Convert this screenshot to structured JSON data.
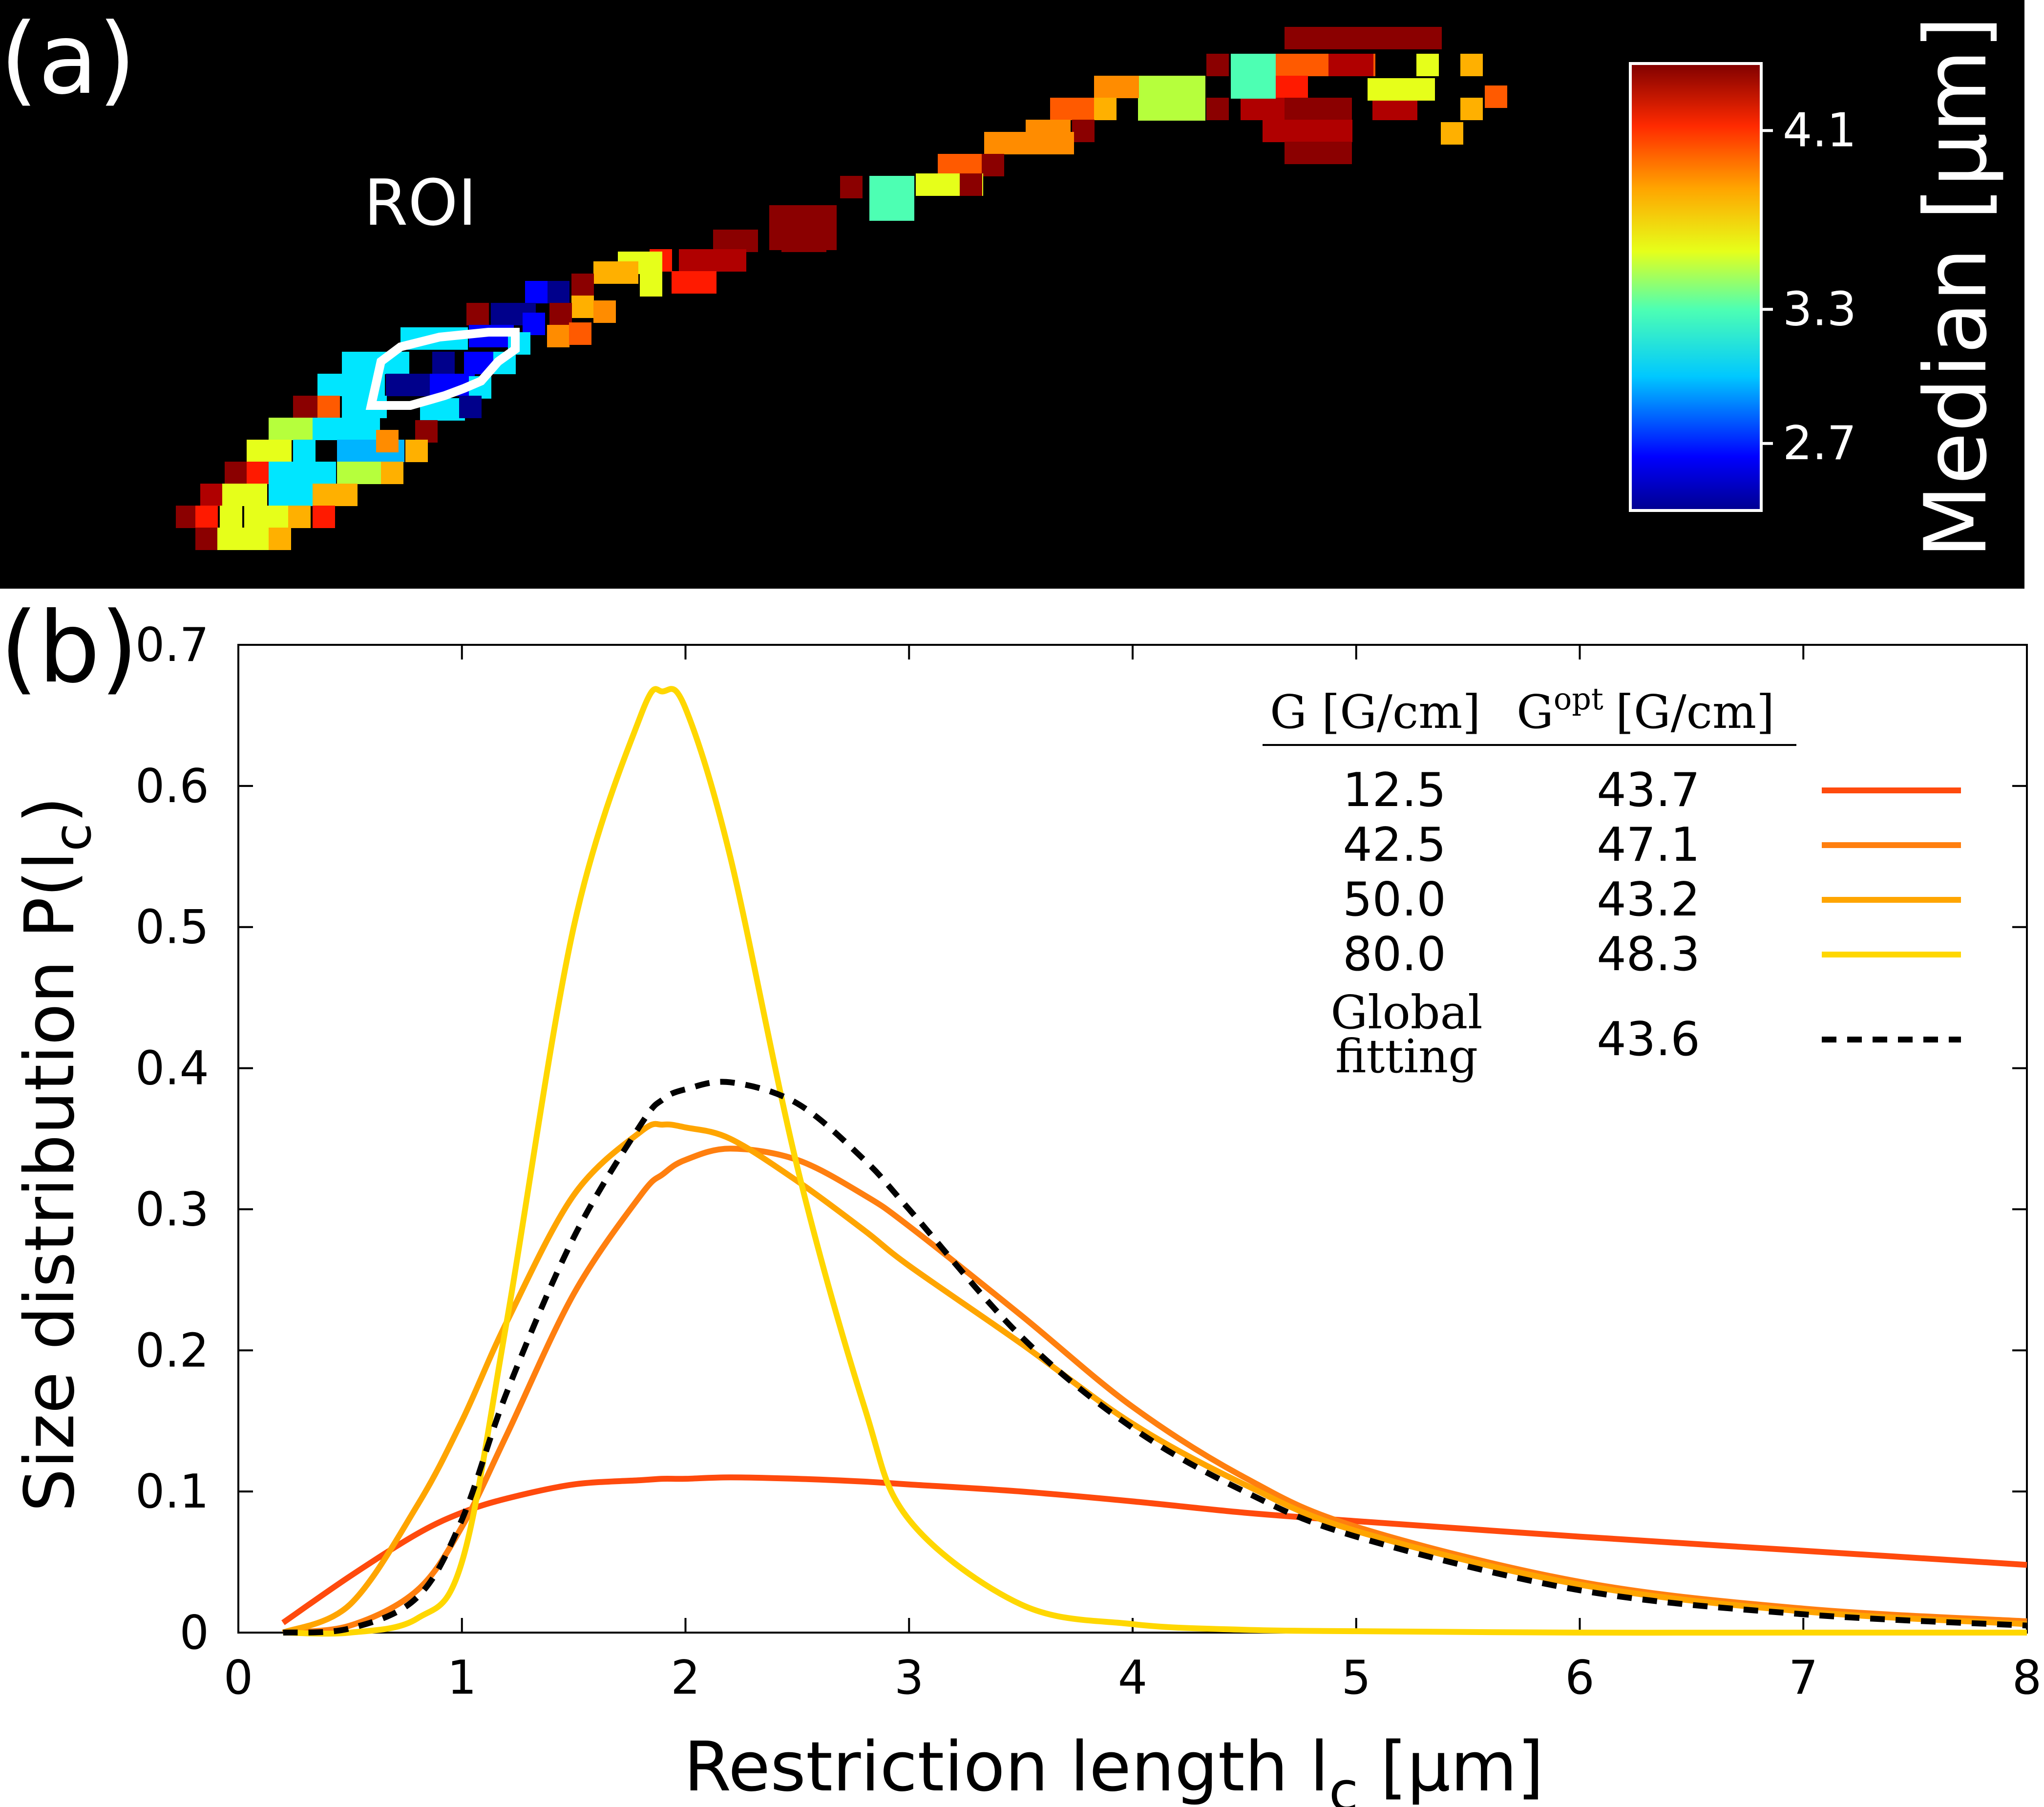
{
  "panel_a": {
    "label": "(a)",
    "roi_label": "ROI",
    "colorbar": {
      "title": "Median [µm]",
      "ticks": [
        "4.1",
        "3.3",
        "2.7"
      ],
      "tick_values": [
        4.1,
        3.3,
        2.7
      ],
      "range": [
        2.4,
        4.4
      ]
    }
  },
  "panel_b": {
    "label": "(b)",
    "legend": {
      "header_g": "G [G/cm]",
      "header_gopt_base": "G",
      "header_gopt_sup": "opt",
      "header_gopt_unit": "[G/cm]",
      "global_label_line1": "Global",
      "global_label_line2": "fitting"
    }
  },
  "chart_data": {
    "type": "line",
    "xlabel": "Restriction length l_c [µm]",
    "ylabel": "Size distribution P(l_c)",
    "xlabel_parts": {
      "main": "Restriction length l",
      "sub": "c",
      "unit": "[µm]"
    },
    "ylabel_parts": {
      "main": "Size distribution P(l",
      "sub": "c",
      "end": ")"
    },
    "xlim": [
      0,
      8
    ],
    "ylim": [
      0,
      0.7
    ],
    "xticks": [
      "0",
      "1",
      "2",
      "3",
      "4",
      "5",
      "6",
      "7",
      "8"
    ],
    "yticks": [
      "0",
      "0.1",
      "0.2",
      "0.3",
      "0.4",
      "0.5",
      "0.6",
      "0.7"
    ],
    "x": [
      0.2,
      0.5,
      0.8,
      1.0,
      1.2,
      1.5,
      1.8,
      1.9,
      2.0,
      2.2,
      2.5,
      2.8,
      3.0,
      3.5,
      4.0,
      4.5,
      5.0,
      6.0,
      7.0,
      8.0
    ],
    "series": [
      {
        "g": "12.5",
        "gopt": "43.7",
        "color": "#ff4a0d",
        "dash": false,
        "values": [
          0.007,
          0.04,
          0.07,
          0.085,
          0.095,
          0.105,
          0.108,
          0.109,
          0.109,
          0.11,
          0.109,
          0.107,
          0.105,
          0.1,
          0.093,
          0.085,
          0.079,
          0.068,
          0.058,
          0.048
        ]
      },
      {
        "g": "42.5",
        "gopt": "47.1",
        "color": "#ff7f0f",
        "dash": false,
        "values": [
          0.0,
          0.005,
          0.03,
          0.075,
          0.14,
          0.24,
          0.31,
          0.325,
          0.335,
          0.343,
          0.335,
          0.31,
          0.288,
          0.225,
          0.16,
          0.11,
          0.075,
          0.036,
          0.017,
          0.008
        ]
      },
      {
        "g": "50.0",
        "gopt": "43.2",
        "color": "#ffa500",
        "dash": false,
        "values": [
          0.0,
          0.02,
          0.09,
          0.15,
          0.22,
          0.31,
          0.355,
          0.36,
          0.358,
          0.35,
          0.32,
          0.285,
          0.26,
          0.205,
          0.148,
          0.105,
          0.072,
          0.034,
          0.015,
          0.006
        ]
      },
      {
        "g": "80.0",
        "gopt": "48.3",
        "color": "#ffd700",
        "dash": false,
        "values": [
          0.0,
          0.0,
          0.01,
          0.05,
          0.22,
          0.5,
          0.65,
          0.667,
          0.655,
          0.55,
          0.33,
          0.16,
          0.08,
          0.02,
          0.006,
          0.002,
          0.001,
          0.0,
          0.0,
          0.0
        ]
      },
      {
        "g": "Global fitting",
        "gopt": "43.6",
        "color": "#000000",
        "dash": true,
        "values": [
          0.0,
          0.003,
          0.025,
          0.08,
          0.17,
          0.28,
          0.36,
          0.378,
          0.385,
          0.39,
          0.375,
          0.335,
          0.3,
          0.21,
          0.145,
          0.1,
          0.068,
          0.03,
          0.013,
          0.005
        ]
      }
    ],
    "grid": false,
    "legend_position": "top-right"
  }
}
